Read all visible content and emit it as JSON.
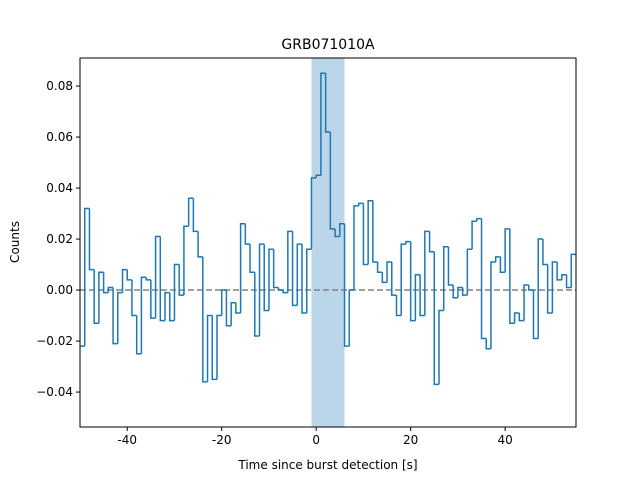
{
  "chart_data": {
    "type": "histogram",
    "title": "GRB071010A",
    "x_label": "Time since burst detection [s]",
    "y_label": "Counts",
    "color": "#1f77b4",
    "span": [
      -1,
      6
    ],
    "span_color": "#1f77b4",
    "span_opacity": 0.3,
    "reference_line": 0,
    "reference_color": "#808080",
    "bins": [
      -50,
      -49,
      -48,
      -47,
      -46,
      -45,
      -44,
      -43,
      -42,
      -41,
      -40,
      -39,
      -38,
      -37,
      -36,
      -35,
      -34,
      -33,
      -32,
      -31,
      -30,
      -29,
      -28,
      -27,
      -26,
      -25,
      -24,
      -23,
      -22,
      -21,
      -20,
      -19,
      -18,
      -17,
      -16,
      -15,
      -14,
      -13,
      -12,
      -11,
      -10,
      -9,
      -8,
      -7,
      -6,
      -5,
      -4,
      -3,
      -2,
      -1,
      0,
      1,
      2,
      3,
      4,
      5,
      6,
      7,
      8,
      9,
      10,
      11,
      12,
      13,
      14,
      15,
      16,
      17,
      18,
      19,
      20,
      21,
      22,
      23,
      24,
      25,
      26,
      27,
      28,
      29,
      30,
      31,
      32,
      33,
      34,
      35,
      36,
      37,
      38,
      39,
      40,
      41,
      42,
      43,
      44,
      45,
      46,
      47,
      48,
      49,
      50,
      51,
      52,
      53,
      54,
      55
    ],
    "values": [
      -0.022,
      0.032,
      0.008,
      -0.013,
      0.007,
      -0.001,
      0.001,
      -0.021,
      -0.001,
      0.008,
      0.004,
      -0.01,
      -0.025,
      0.005,
      0.004,
      -0.011,
      0.021,
      -0.012,
      -0.001,
      -0.012,
      0.01,
      -0.002,
      0.025,
      0.036,
      0.023,
      0.013,
      -0.036,
      -0.01,
      -0.035,
      -0.01,
      0.0,
      -0.014,
      -0.005,
      -0.009,
      0.026,
      0.018,
      0.007,
      -0.018,
      0.018,
      -0.008,
      0.016,
      0.001,
      0.0,
      -0.001,
      0.023,
      -0.006,
      0.018,
      -0.009,
      0.016,
      0.044,
      0.045,
      0.085,
      0.062,
      0.024,
      0.021,
      0.026,
      -0.022,
      0.0,
      0.033,
      0.034,
      0.01,
      0.035,
      0.011,
      0.007,
      0.003,
      0.011,
      -0.002,
      -0.01,
      0.018,
      0.019,
      -0.012,
      0.006,
      -0.01,
      0.023,
      0.015,
      -0.037,
      -0.008,
      0.017,
      0.002,
      -0.003,
      0.001,
      -0.002,
      0.016,
      0.027,
      0.028,
      -0.019,
      -0.023,
      0.011,
      0.013,
      0.007,
      0.024,
      -0.013,
      -0.009,
      -0.012,
      0.002,
      0.0,
      -0.019,
      0.02,
      0.01,
      -0.009,
      0.011,
      0.004,
      0.006,
      0.001,
      0.014
    ],
    "xlim": [
      -50,
      55
    ],
    "ylim": [
      -0.0537,
      0.091
    ],
    "xticks": [
      -40,
      -20,
      0,
      20,
      40
    ],
    "yticks": [
      {
        "value": -0.04,
        "label": "−0.04"
      },
      {
        "value": -0.02,
        "label": "−0.02"
      },
      {
        "value": 0,
        "label": "0.00"
      },
      {
        "value": 0.02,
        "label": "0.02"
      },
      {
        "value": 0.04,
        "label": "0.04"
      },
      {
        "value": 0.06,
        "label": "0.06"
      },
      {
        "value": 0.08,
        "label": "0.08"
      }
    ]
  }
}
